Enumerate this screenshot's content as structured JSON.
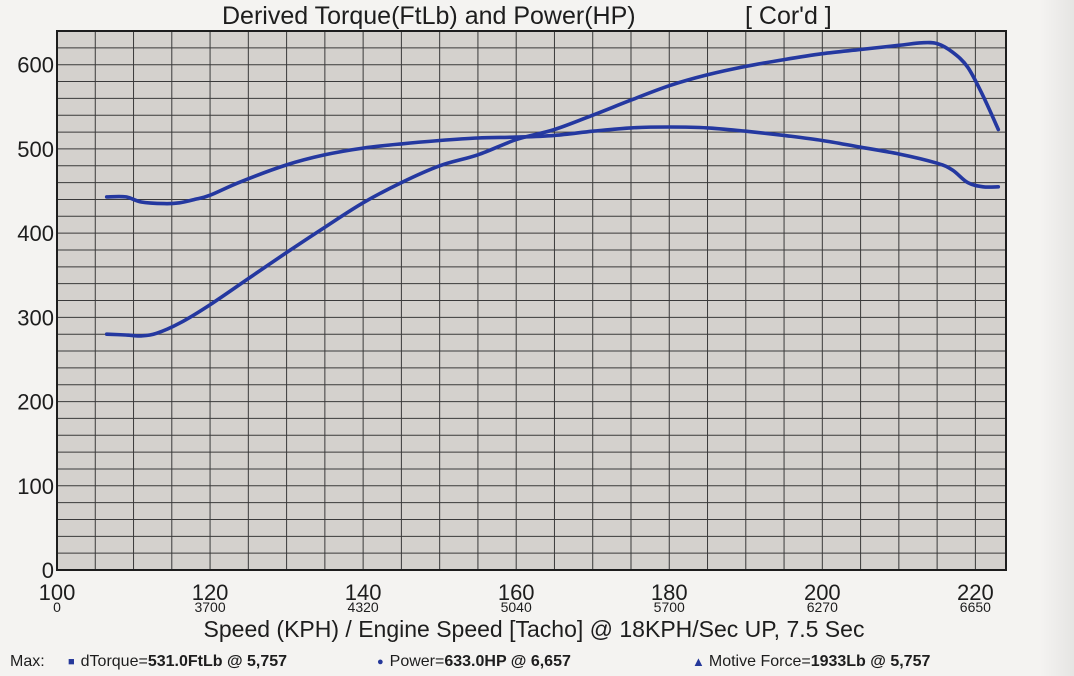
{
  "chart_data": {
    "type": "line",
    "title": "Derived Torque(FtLb) and Power(HP)",
    "title_note": "[ Cor'd ]",
    "xlabel": "Speed (KPH) / Engine Speed [Tacho] @ 18KPH/Sec UP, 7.5 Sec",
    "xlim": [
      100,
      224
    ],
    "ylim": [
      0,
      640
    ],
    "grid": true,
    "y_ticks": [
      0,
      100,
      200,
      300,
      400,
      500,
      600
    ],
    "x_ticks": [
      {
        "value": 100,
        "label": "100",
        "sub": "0"
      },
      {
        "value": 120,
        "label": "120",
        "sub": "3700"
      },
      {
        "value": 140,
        "label": "140",
        "sub": "4320"
      },
      {
        "value": 160,
        "label": "160",
        "sub": "5040"
      },
      {
        "value": 180,
        "label": "180",
        "sub": "5700"
      },
      {
        "value": 200,
        "label": "200",
        "sub": "6270"
      },
      {
        "value": 220,
        "label": "220",
        "sub": "6650"
      }
    ],
    "series": [
      {
        "color": "#2438a0",
        "x": [
          106.5,
          109,
          111,
          114,
          116,
          118,
          120,
          124,
          130,
          135,
          140,
          145,
          150,
          155,
          160,
          165,
          170,
          175,
          180,
          185,
          190,
          195,
          200,
          205,
          210,
          215,
          217,
          219,
          221,
          223
        ],
        "y": [
          443,
          443,
          437,
          435,
          436,
          440,
          445,
          461,
          481,
          493,
          501,
          506,
          510,
          513,
          514,
          516,
          521,
          525,
          526,
          525,
          521,
          516,
          510,
          502,
          494,
          483,
          475,
          460,
          455,
          455
        ]
      },
      {
        "color": "#2438a0",
        "x": [
          106.5,
          109,
          111,
          113,
          116,
          120,
          125,
          130,
          135,
          140,
          145,
          150,
          155,
          160,
          165,
          170,
          175,
          180,
          185,
          190,
          195,
          200,
          205,
          210,
          213,
          215,
          217,
          219,
          221,
          223
        ],
        "y": [
          280,
          279,
          278,
          281,
          293,
          315,
          346,
          377,
          407,
          436,
          460,
          480,
          493,
          511,
          523,
          540,
          558,
          575,
          588,
          598,
          606,
          613,
          618,
          623,
          626,
          625,
          615,
          597,
          563,
          523
        ]
      }
    ]
  },
  "footer": {
    "max_label": "Max:",
    "torque": {
      "label": "dTorque=",
      "value": "531.0FtLb @ 5,757"
    },
    "power": {
      "label": "Power=",
      "value": "633.0HP @ 6,657"
    },
    "force": {
      "label": "Motive Force=",
      "value": "1933Lb @ 5,757"
    },
    "marker_square": "■",
    "marker_circle": "●",
    "marker_triangle": "▲"
  }
}
